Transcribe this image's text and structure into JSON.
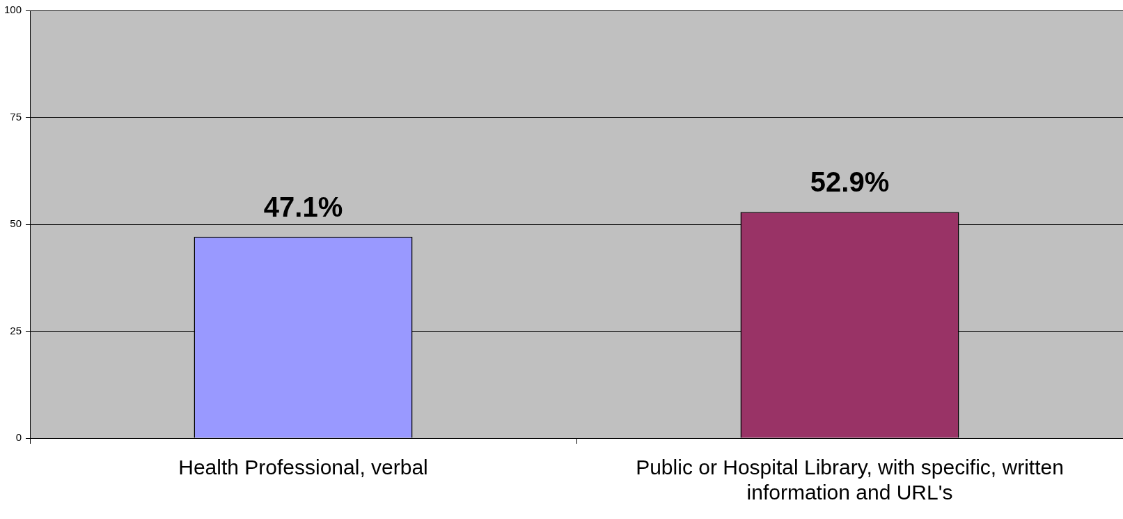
{
  "chart_data": {
    "type": "bar",
    "categories": [
      "Health Professional, verbal",
      "Public or Hospital Library, with specific, written information and URL's"
    ],
    "values": [
      47.1,
      52.9
    ],
    "colors": [
      "#9999ff",
      "#993366"
    ],
    "value_labels": [
      "47.1%",
      "52.9%"
    ],
    "ylim": [
      0,
      100
    ],
    "yticks": [
      0,
      25,
      50,
      75,
      100
    ],
    "grid": "y"
  }
}
